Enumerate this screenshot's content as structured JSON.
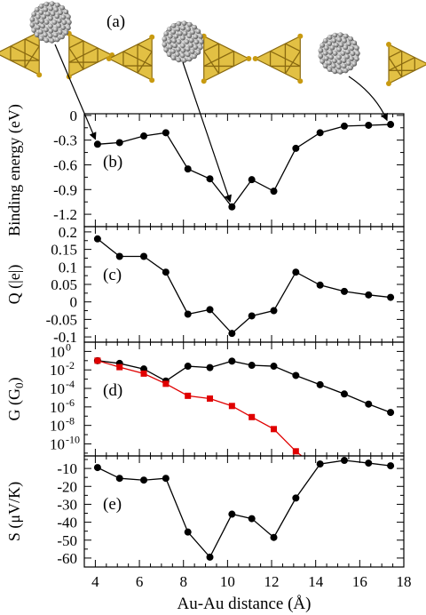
{
  "chart_data": [
    {
      "panel_label": "(b)",
      "type": "line",
      "ylabel": "Binding energy (eV)",
      "xlim": [
        3.5,
        18
      ],
      "ylim": [
        -1.35,
        0.02
      ],
      "yticks": [
        0,
        -0.3,
        -0.6,
        -0.9,
        -1.2
      ],
      "ytick_labels": [
        "0",
        "-0.3",
        "-0.6",
        "-0.9",
        "-1.2"
      ],
      "series": [
        {
          "color": "#000000",
          "marker": "circle",
          "x": [
            4.1,
            5.1,
            6.2,
            7.2,
            8.2,
            9.2,
            10.2,
            11.1,
            12.1,
            13.1,
            14.2,
            15.3,
            16.4,
            17.4
          ],
          "y": [
            -0.35,
            -0.33,
            -0.25,
            -0.21,
            -0.65,
            -0.77,
            -1.11,
            -0.78,
            -0.92,
            -0.4,
            -0.21,
            -0.13,
            -0.12,
            -0.11
          ]
        }
      ]
    },
    {
      "panel_label": "(c)",
      "type": "line",
      "ylabel": "Q (|e|)",
      "xlim": [
        3.5,
        18
      ],
      "ylim": [
        -0.115,
        0.215
      ],
      "yticks": [
        0.2,
        0.15,
        0.1,
        0.05,
        0,
        -0.05,
        -0.1
      ],
      "ytick_labels": [
        "0.2",
        "0.15",
        "0.1",
        "0.05",
        "0",
        "-0.05",
        "-0.1"
      ],
      "series": [
        {
          "color": "#000000",
          "marker": "circle",
          "x": [
            4.1,
            5.1,
            6.2,
            7.2,
            8.2,
            9.2,
            10.2,
            11.1,
            12.1,
            13.1,
            14.2,
            15.3,
            16.4,
            17.4
          ],
          "y": [
            0.18,
            0.13,
            0.13,
            0.085,
            -0.035,
            -0.022,
            -0.09,
            -0.04,
            -0.025,
            0.085,
            0.048,
            0.03,
            0.02,
            0.013
          ]
        }
      ]
    },
    {
      "panel_label": "(d)",
      "type": "line",
      "ylabel": "G (G0)",
      "yscale": "log",
      "xlim": [
        3.5,
        18
      ],
      "ylim_log10": [
        -11.3,
        1
      ],
      "yticks_log10": [
        0,
        -2,
        -4,
        -6,
        -8,
        -10
      ],
      "ytick_mantissa": "10",
      "ytick_exponents": [
        "0",
        "-2",
        "-4",
        "-6",
        "-8",
        "-10"
      ],
      "series": [
        {
          "color": "#000000",
          "marker": "circle",
          "x": [
            4.1,
            5.1,
            6.2,
            7.2,
            8.2,
            9.2,
            10.2,
            11.1,
            12.1,
            13.1,
            14.2,
            15.3,
            16.4,
            17.4
          ],
          "log10_y": [
            -1.0,
            -1.3,
            -1.9,
            -3.2,
            -1.6,
            -1.75,
            -1.05,
            -1.5,
            -1.6,
            -2.6,
            -3.6,
            -4.6,
            -5.7,
            -6.6
          ]
        },
        {
          "color": "#e00000",
          "marker": "square",
          "x": [
            4.1,
            5.1,
            6.2,
            7.2,
            8.2,
            9.2,
            10.2,
            11.1,
            12.1,
            13.1,
            14.0
          ],
          "log10_y": [
            -1.0,
            -1.7,
            -2.4,
            -3.5,
            -4.8,
            -5.1,
            -5.9,
            -7.1,
            -8.4,
            -10.8,
            -12.5
          ]
        }
      ]
    },
    {
      "panel_label": "(e)",
      "type": "line",
      "ylabel": "S (μV/K)",
      "xlabel": "Au-Au distance (Å)",
      "xlim": [
        3.5,
        18
      ],
      "ylim": [
        -65,
        -3
      ],
      "yticks": [
        -10,
        -20,
        -30,
        -40,
        -50,
        -60
      ],
      "ytick_labels": [
        "-10",
        "-20",
        "-30",
        "-40",
        "-50",
        "-60"
      ],
      "xticks": [
        4,
        6,
        8,
        10,
        12,
        14,
        16,
        18
      ],
      "xtick_labels": [
        "4",
        "6",
        "8",
        "10",
        "12",
        "14",
        "16",
        "18"
      ],
      "series": [
        {
          "color": "#000000",
          "marker": "circle",
          "x": [
            4.1,
            5.1,
            6.2,
            7.2,
            8.2,
            9.2,
            10.2,
            11.1,
            12.1,
            13.1,
            14.2,
            15.3,
            16.4,
            17.4
          ],
          "y": [
            -9.5,
            -15.5,
            -16.5,
            -15.5,
            -45.5,
            -59.5,
            -35.5,
            -38.0,
            -48.5,
            -26.5,
            -7.5,
            -5.5,
            -7.0,
            -8.5
          ]
        }
      ]
    }
  ],
  "illustration": {
    "label": "(a)",
    "molecule_icon": "c60-fullerene-icon",
    "electrode_icon": "gold-cluster-icon",
    "arrow_targets_x": [
      4.1,
      10.2,
      17.4
    ]
  }
}
